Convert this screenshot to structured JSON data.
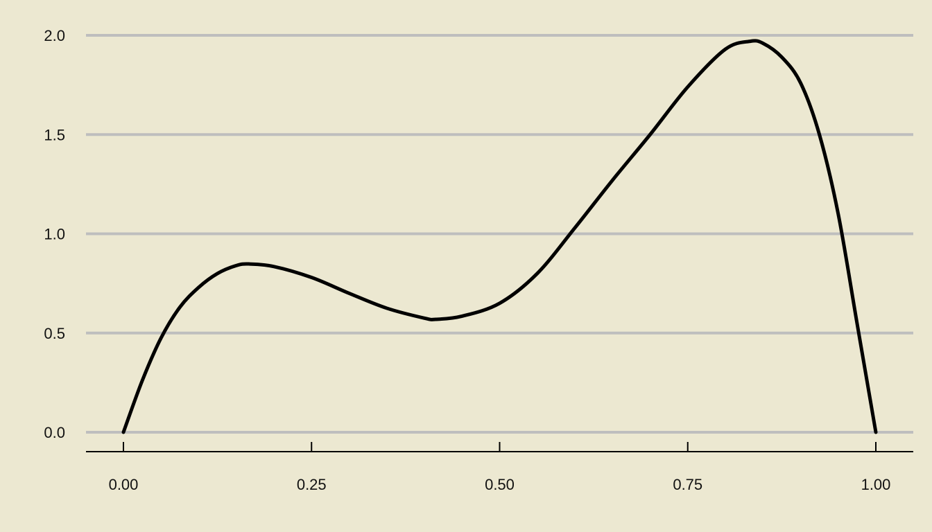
{
  "chart_data": {
    "type": "line",
    "title": "",
    "xlabel": "",
    "ylabel": "",
    "xlim": [
      0,
      1
    ],
    "ylim": [
      0,
      2
    ],
    "x_ticks": [
      "0.00",
      "0.25",
      "0.50",
      "0.75",
      "1.00"
    ],
    "y_ticks": [
      "0.0",
      "0.5",
      "1.0",
      "1.5",
      "2.0"
    ],
    "grid": "horizontal",
    "colors": {
      "background": "#ece8d1",
      "grid": "#bebebe",
      "line": "#000000"
    },
    "series": [
      {
        "x": [
          0,
          0.025,
          0.05,
          0.075,
          0.1,
          0.125,
          0.15,
          0.167,
          0.2,
          0.25,
          0.3,
          0.35,
          0.4,
          0.415,
          0.45,
          0.5,
          0.55,
          0.6,
          0.65,
          0.7,
          0.75,
          0.8,
          0.833,
          0.85,
          0.875,
          0.9,
          0.925,
          0.95,
          0.975,
          1.0
        ],
        "y": [
          0,
          0.26,
          0.475,
          0.63,
          0.73,
          0.8,
          0.84,
          0.848,
          0.835,
          0.78,
          0.7,
          0.625,
          0.575,
          0.569,
          0.585,
          0.65,
          0.8,
          1.03,
          1.27,
          1.5,
          1.74,
          1.93,
          1.97,
          1.96,
          1.89,
          1.76,
          1.5,
          1.1,
          0.55,
          0
        ]
      }
    ]
  }
}
